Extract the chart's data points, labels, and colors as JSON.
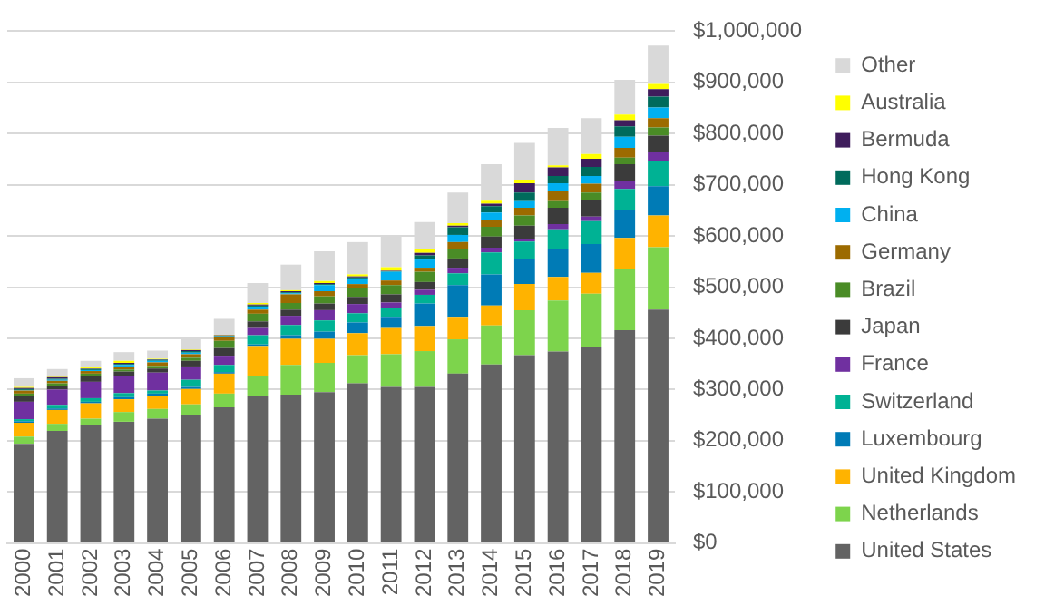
{
  "chart_data": {
    "type": "bar",
    "stacked": true,
    "legend": "right",
    "grid": "y",
    "categories": [
      "2000",
      "2001",
      "2002",
      "2003",
      "2004",
      "2005",
      "2006",
      "2007",
      "2008",
      "2009",
      "2010",
      "2011",
      "2012",
      "2013",
      "2014",
      "2015",
      "2016",
      "2017",
      "2018",
      "2019"
    ],
    "ylim": [
      0,
      1000000
    ],
    "yticks": [
      {
        "value": 0,
        "label": "$0"
      },
      {
        "value": 100000,
        "label": "$100,000"
      },
      {
        "value": 200000,
        "label": "$200,000"
      },
      {
        "value": 300000,
        "label": "$300,000"
      },
      {
        "value": 400000,
        "label": "$400,000"
      },
      {
        "value": 500000,
        "label": "$500,000"
      },
      {
        "value": 600000,
        "label": "$600,000"
      },
      {
        "value": 700000,
        "label": "$700,000"
      },
      {
        "value": 800000,
        "label": "$800,000"
      },
      {
        "value": 900000,
        "label": "$900,000"
      },
      {
        "value": 1000000,
        "label": "$1,000,000"
      }
    ],
    "series": [
      {
        "name": "United States",
        "color": "#636363",
        "values": [
          194000,
          219000,
          230000,
          237000,
          243000,
          251000,
          265000,
          287000,
          290000,
          295000,
          312000,
          305000,
          305000,
          331000,
          349000,
          367000,
          374000,
          383000,
          416000,
          456000
        ]
      },
      {
        "name": "Netherlands",
        "color": "#7dd44c",
        "values": [
          14000,
          14000,
          13000,
          19000,
          19000,
          20000,
          27000,
          40000,
          58000,
          57000,
          55000,
          64000,
          70000,
          67000,
          76000,
          88000,
          100000,
          104000,
          119000,
          122000
        ]
      },
      {
        "name": "United Kingdom",
        "color": "#ffb300",
        "values": [
          27000,
          27000,
          30000,
          25000,
          26000,
          30000,
          39000,
          58000,
          51000,
          47000,
          43000,
          51000,
          49000,
          44000,
          39000,
          51000,
          46000,
          41000,
          61000,
          62000
        ]
      },
      {
        "name": "Luxembourg",
        "color": "#007bb6",
        "values": [
          3000,
          3000,
          3000,
          4000,
          4000,
          4000,
          3000,
          3000,
          7000,
          14000,
          21000,
          22000,
          44000,
          62000,
          61000,
          50000,
          54000,
          56000,
          54000,
          57000
        ]
      },
      {
        "name": "Switzerland",
        "color": "#00b294",
        "values": [
          4000,
          7000,
          7000,
          8000,
          6000,
          14000,
          14000,
          18000,
          20000,
          22000,
          18000,
          18000,
          17000,
          23000,
          43000,
          33000,
          39000,
          45000,
          42000,
          49000
        ]
      },
      {
        "name": "France",
        "color": "#7030a0",
        "values": [
          34000,
          30000,
          32000,
          34000,
          35000,
          26000,
          18000,
          14000,
          18000,
          20000,
          18000,
          10000,
          10000,
          11000,
          9000,
          6000,
          10000,
          9000,
          16000,
          18000
        ]
      },
      {
        "name": "Japan",
        "color": "#3b3b3b",
        "values": [
          11000,
          7000,
          12000,
          8000,
          8000,
          11000,
          15000,
          13000,
          12000,
          13000,
          14000,
          16000,
          15000,
          18000,
          22000,
          25000,
          32000,
          33000,
          32000,
          32000
        ]
      },
      {
        "name": "Brazil",
        "color": "#4a8c26",
        "values": [
          5000,
          5000,
          4000,
          4000,
          5000,
          6000,
          14000,
          15000,
          13000,
          14000,
          17000,
          18000,
          20000,
          18000,
          19000,
          20000,
          13000,
          14000,
          13000,
          16000
        ]
      },
      {
        "name": "Germany",
        "color": "#9c6b00",
        "values": [
          6000,
          5000,
          5000,
          6000,
          7000,
          7000,
          7000,
          8000,
          17000,
          10000,
          8000,
          9000,
          8000,
          14000,
          14000,
          15000,
          20000,
          17000,
          19000,
          18000
        ]
      },
      {
        "name": "China",
        "color": "#00b0f0",
        "values": [
          1000,
          2000,
          2000,
          3000,
          3000,
          3000,
          2000,
          6000,
          2000,
          12000,
          11000,
          17000,
          16000,
          14000,
          14000,
          13000,
          15000,
          15000,
          22000,
          21000
        ]
      },
      {
        "name": "Hong Kong",
        "color": "#006b5c",
        "values": [
          2000,
          2000,
          2000,
          2000,
          2000,
          3000,
          1000,
          2000,
          2000,
          2000,
          2000,
          1000,
          8000,
          15000,
          12000,
          17000,
          14000,
          18000,
          20000,
          21000
        ]
      },
      {
        "name": "Bermuda",
        "color": "#3f1d5c",
        "values": [
          2000,
          3000,
          1000,
          2000,
          1000,
          2000,
          1000,
          2000,
          2000,
          2000,
          2000,
          1000,
          5000,
          3000,
          5000,
          18000,
          17000,
          16000,
          12000,
          15000
        ]
      },
      {
        "name": "Australia",
        "color": "#ffff00",
        "values": [
          2000,
          1000,
          2000,
          4000,
          1000,
          1000,
          1000,
          3000,
          2000,
          4000,
          4000,
          7000,
          7000,
          5000,
          6000,
          7000,
          4000,
          9000,
          11000,
          10000
        ]
      },
      {
        "name": "Other",
        "color": "#d9d9d9",
        "values": [
          17000,
          15000,
          13000,
          17000,
          16000,
          24000,
          31000,
          39000,
          50000,
          58000,
          63000,
          60000,
          53000,
          60000,
          71000,
          72000,
          73000,
          70000,
          68000,
          75000
        ]
      }
    ]
  }
}
